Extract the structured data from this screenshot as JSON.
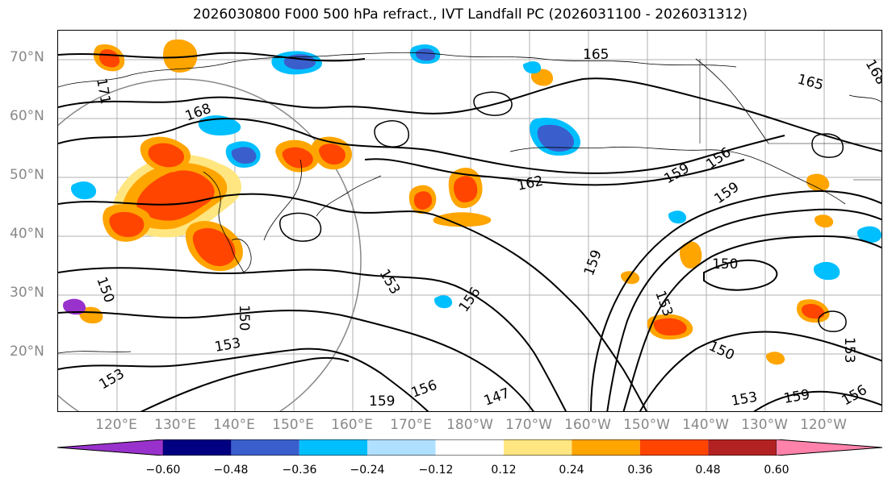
{
  "title": "2026030800 F000 500 hPa refract., IVT Landfall PC (2026031100 - 2026031312)",
  "map": {
    "latitude_labels": [
      "70°N",
      "60°N",
      "50°N",
      "40°N",
      "30°N",
      "20°N"
    ],
    "longitude_labels": [
      "120°E",
      "130°E",
      "140°E",
      "150°E",
      "160°E",
      "170°E",
      "180°W",
      "170°W",
      "160°W",
      "150°W",
      "140°W",
      "130°W",
      "120°W"
    ],
    "contour_labels": [
      "171",
      "168",
      "165",
      "165",
      "168",
      "162",
      "159",
      "156",
      "159",
      "153",
      "150",
      "150",
      "159",
      "153",
      "150",
      "153",
      "150",
      "153",
      "156",
      "159",
      "156",
      "147",
      "153",
      "159",
      "156",
      "153"
    ]
  },
  "colorbar": {
    "tick_labels": [
      "−0.60",
      "−0.48",
      "−0.36",
      "−0.24",
      "−0.12",
      "0.12",
      "0.24",
      "0.36",
      "0.48",
      "0.60"
    ],
    "colors": [
      "#9932cc",
      "#000080",
      "#3a5fcd",
      "#00bfff",
      "#b0e0ff",
      "#ffffff",
      "#ffe680",
      "#ffa500",
      "#ff4500",
      "#b22222",
      "#ff82ab"
    ]
  }
}
